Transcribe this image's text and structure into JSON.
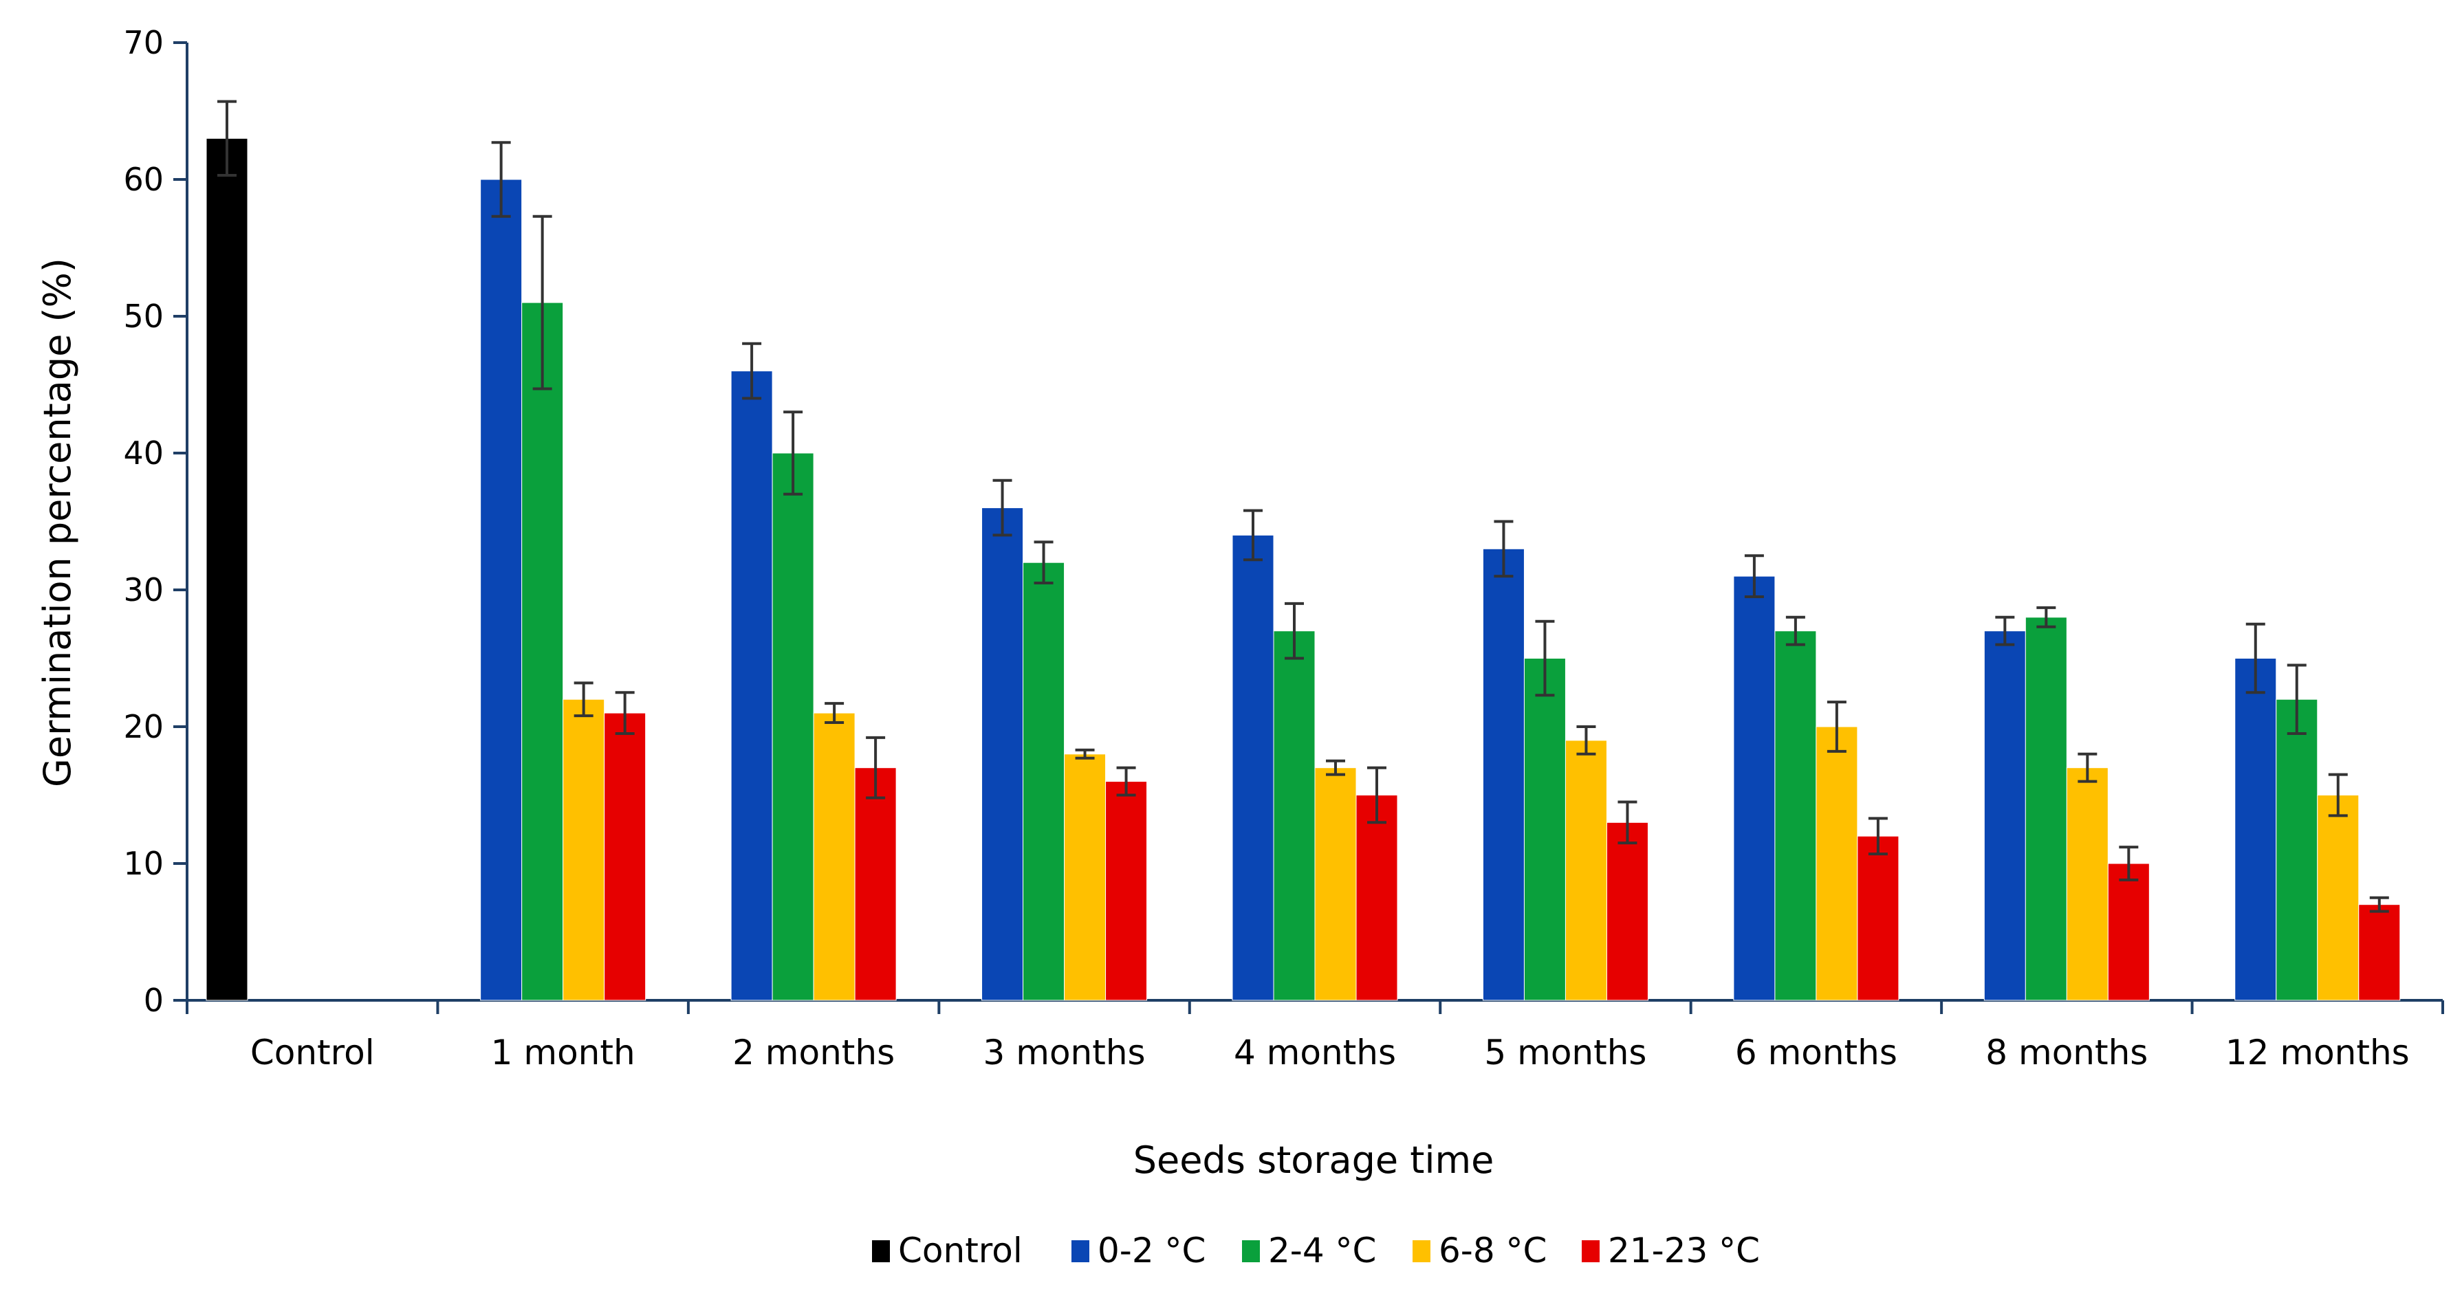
{
  "chart_data": {
    "type": "bar",
    "title": "",
    "xlabel": "Seeds storage time",
    "ylabel": "Germination percentage (%)",
    "ylim": [
      0,
      70
    ],
    "yticks": [
      "0",
      "10",
      "20",
      "30",
      "40",
      "50",
      "60",
      "70"
    ],
    "grid": false,
    "legend_position": "bottom",
    "categories": [
      "Control",
      "1 month",
      "2 months",
      "3 months",
      "4 months",
      "5 months",
      "6 months",
      "8 months",
      "12 months"
    ],
    "series": [
      {
        "name": "Control",
        "color": "#000000",
        "values": [
          63,
          null,
          null,
          null,
          null,
          null,
          null,
          null,
          null
        ],
        "errors": [
          2.7,
          null,
          null,
          null,
          null,
          null,
          null,
          null,
          null
        ]
      },
      {
        "name": "0-2 °C",
        "color": "#0a46b4",
        "values": [
          null,
          60,
          46,
          36,
          34,
          33,
          31,
          27,
          25
        ],
        "errors": [
          null,
          2.7,
          2.0,
          2.0,
          1.8,
          2.0,
          1.5,
          1.0,
          2.5
        ]
      },
      {
        "name": "2-4 °C",
        "color": "#0aa03c",
        "values": [
          null,
          51,
          40,
          32,
          27,
          25,
          27,
          28,
          22
        ],
        "errors": [
          null,
          6.3,
          3.0,
          1.5,
          2.0,
          2.7,
          1.0,
          0.7,
          2.5
        ]
      },
      {
        "name": "6-8 °C",
        "color": "#ffc000",
        "values": [
          null,
          22,
          21,
          18,
          17,
          19,
          20,
          17,
          15
        ],
        "errors": [
          null,
          1.2,
          0.7,
          0.3,
          0.5,
          1.0,
          1.8,
          1.0,
          1.5
        ]
      },
      {
        "name": "21-23 °C",
        "color": "#e60000",
        "values": [
          null,
          21,
          17,
          16,
          15,
          13,
          12,
          10,
          7
        ],
        "errors": [
          null,
          1.5,
          2.2,
          1.0,
          2.0,
          1.5,
          1.3,
          1.2,
          0.5
        ]
      }
    ]
  }
}
